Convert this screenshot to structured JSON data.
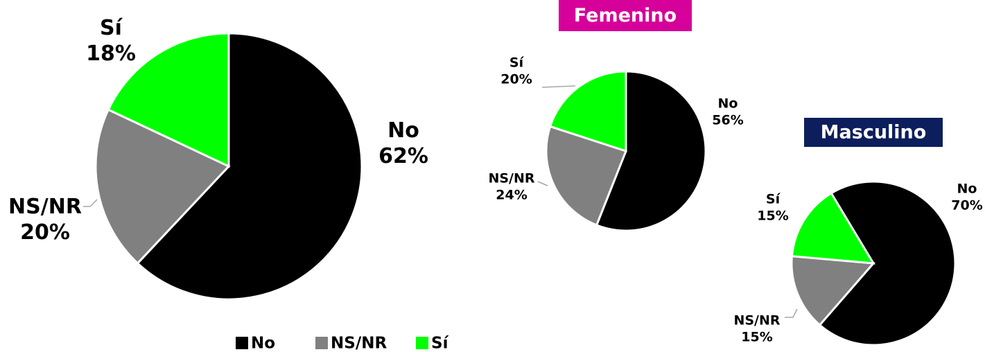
{
  "chart_data": [
    {
      "type": "pie",
      "categories": [
        "No",
        "NS/NR",
        "Sí"
      ],
      "values": [
        62,
        20,
        18
      ],
      "value_labels": [
        "62%",
        "20%",
        "18%"
      ],
      "colors": [
        "#000000",
        "#808080",
        "#00ff00"
      ],
      "legend": true
    },
    {
      "type": "pie",
      "title": "Femenino",
      "categories": [
        "No",
        "NS/NR",
        "Sí"
      ],
      "values": [
        56,
        24,
        20
      ],
      "value_labels": [
        "56%",
        "24%",
        "20%"
      ],
      "colors": [
        "#000000",
        "#808080",
        "#00ff00"
      ]
    },
    {
      "type": "pie",
      "title": "Masculino",
      "categories": [
        "No",
        "NS/NR",
        "Sí"
      ],
      "values": [
        70,
        15,
        15
      ],
      "value_labels": [
        "70%",
        "15%",
        "15%"
      ],
      "colors": [
        "#000000",
        "#808080",
        "#00ff00"
      ]
    }
  ]
}
